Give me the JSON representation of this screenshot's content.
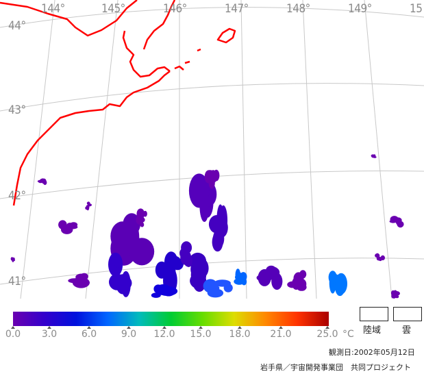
{
  "map": {
    "longitude_labels": [
      "144°",
      "145°",
      "146°",
      "147°",
      "148°",
      "149°",
      "15"
    ],
    "latitude_labels": [
      "44°",
      "43°",
      "42°",
      "41°"
    ],
    "coastline_color": "#ff0000",
    "graticule_color": "#c8c8c8"
  },
  "colorbar": {
    "tick_labels": [
      "0.0",
      "3.0",
      "6.0",
      "9.0",
      "12.0",
      "15.0",
      "18.0",
      "21.0",
      "25.0"
    ],
    "unit": "°C",
    "min": 0,
    "max": 25,
    "colors": [
      "#6a00b0",
      "#3300cc",
      "#0011dd",
      "#0066ff",
      "#00bbbb",
      "#00cc33",
      "#66dd00",
      "#dddd00",
      "#ff8800",
      "#ff3300",
      "#aa0000"
    ]
  },
  "legend": {
    "land_label": "陸域",
    "cloud_label": "雲"
  },
  "footer": {
    "observation_date": "観測日:2002年05月12日",
    "credit": "岩手県／宇宙開発事業団　共同プロジェクト"
  }
}
